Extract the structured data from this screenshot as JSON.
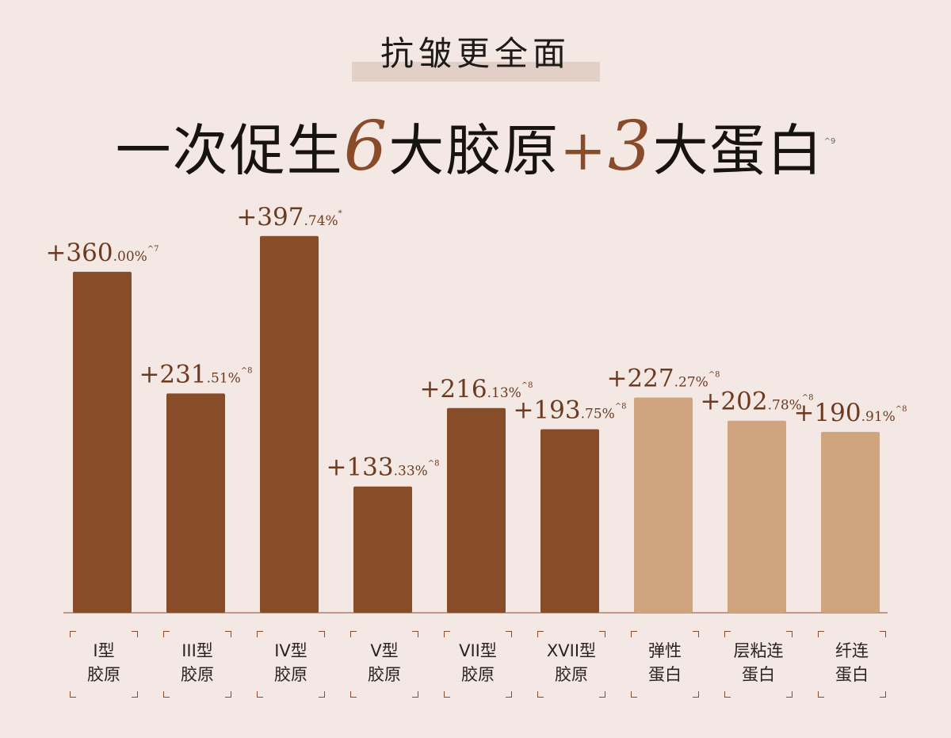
{
  "header": {
    "kicker": "抗皱更全面",
    "headline_a": "一次促生",
    "headline_num_a": "6",
    "headline_b": "大胶原",
    "headline_plus": "+",
    "headline_num_b": "3",
    "headline_c": "大蛋白",
    "headline_note": "^9"
  },
  "colors": {
    "background": "#f3e8e3",
    "collagen_bar": "#874c28",
    "protein_bar": "#cfa47e",
    "label_text": "#6e3a1f",
    "accent": "#8a4b2a"
  },
  "chart_data": {
    "type": "bar",
    "title": "",
    "xlabel": "",
    "ylabel": "",
    "ylim": [
      0,
      400
    ],
    "grid": false,
    "categories": [
      "I型\n胶原",
      "III型\n胶原",
      "IV型\n胶原",
      "V型\n胶原",
      "VII型\n胶原",
      "XVII型\n胶原",
      "弹性\n蛋白",
      "层粘连\n蛋白",
      "纤连\n蛋白"
    ],
    "values": [
      360.0,
      231.51,
      397.74,
      133.33,
      216.13,
      193.75,
      227.27,
      202.78,
      190.91
    ],
    "value_labels": [
      {
        "main": "+360",
        "decimal": ".00%",
        "note": "^7"
      },
      {
        "main": "+231",
        "decimal": ".51%",
        "note": "^8"
      },
      {
        "main": "+397",
        "decimal": ".74%",
        "note": "*"
      },
      {
        "main": "+133",
        "decimal": ".33%",
        "note": "^8"
      },
      {
        "main": "+216",
        "decimal": ".13%",
        "note": "^8"
      },
      {
        "main": "+193",
        "decimal": ".75%",
        "note": "^8"
      },
      {
        "main": "+227",
        "decimal": ".27%",
        "note": "^8"
      },
      {
        "main": "+202",
        "decimal": ".78%",
        "note": "^8"
      },
      {
        "main": "+190",
        "decimal": ".91%",
        "note": "^8"
      }
    ],
    "bar_groups": [
      "collagen",
      "collagen",
      "collagen",
      "collagen",
      "collagen",
      "collagen",
      "protein",
      "protein",
      "protein"
    ]
  }
}
